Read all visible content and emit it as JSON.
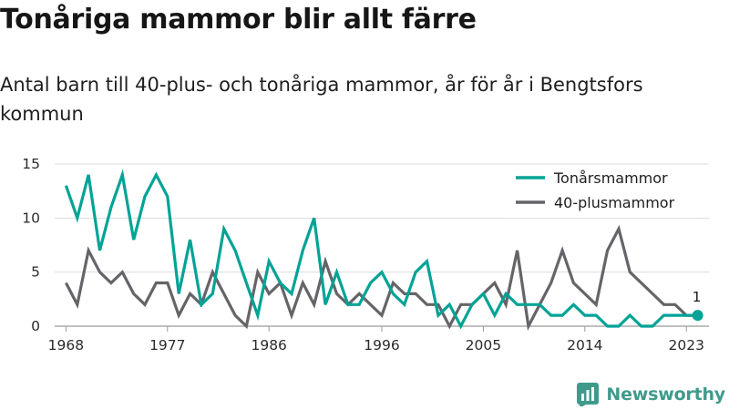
{
  "title": "Tonåriga mammor blir allt färre",
  "subtitle": "Antal barn till 40-plus- och tonåriga mammor, år för år i Bengtsfors kommun",
  "brand": {
    "name": "Newsworthy",
    "logo_icon": "newsworthy-logo-icon"
  },
  "chart_data": {
    "type": "line",
    "x": [
      1968,
      1969,
      1970,
      1971,
      1972,
      1973,
      1974,
      1975,
      1976,
      1977,
      1978,
      1979,
      1980,
      1981,
      1982,
      1983,
      1984,
      1985,
      1986,
      1987,
      1988,
      1989,
      1990,
      1991,
      1992,
      1993,
      1994,
      1995,
      1996,
      1997,
      1998,
      1999,
      2000,
      2001,
      2002,
      2003,
      2004,
      2005,
      2006,
      2007,
      2008,
      2009,
      2010,
      2011,
      2012,
      2013,
      2014,
      2015,
      2016,
      2017,
      2018,
      2019,
      2020,
      2021,
      2022,
      2023,
      2024
    ],
    "xticks": [
      "1968",
      "1977",
      "1986",
      "1996",
      "2005",
      "2014",
      "2023"
    ],
    "xtick_values": [
      1968,
      1977,
      1986,
      1996,
      2005,
      2014,
      2023
    ],
    "yticks": [
      "0",
      "5",
      "10",
      "15"
    ],
    "ytick_values": [
      0,
      5,
      10,
      15
    ],
    "ylim": [
      0,
      15
    ],
    "xlim": [
      1967,
      2025
    ],
    "grid": "horizontal",
    "legend_position": "top-right",
    "series": [
      {
        "name": "Tonårsmammor",
        "color": "#00a396",
        "values": [
          13,
          10,
          14,
          7,
          11,
          14,
          8,
          12,
          14,
          12,
          3,
          8,
          2,
          3,
          9,
          7,
          4,
          1,
          6,
          4,
          3,
          7,
          10,
          2,
          5,
          2,
          2,
          4,
          5,
          3,
          2,
          5,
          6,
          1,
          2,
          0,
          2,
          3,
          1,
          3,
          2,
          2,
          2,
          1,
          1,
          2,
          1,
          1,
          0,
          0,
          1,
          0,
          0,
          1,
          1,
          1,
          1
        ]
      },
      {
        "name": "40-plusmammor",
        "color": "#666468",
        "values": [
          4,
          2,
          7,
          5,
          4,
          5,
          3,
          2,
          4,
          4,
          1,
          3,
          2,
          5,
          3,
          1,
          0,
          5,
          3,
          4,
          1,
          4,
          2,
          6,
          3,
          2,
          3,
          2,
          1,
          4,
          3,
          3,
          2,
          2,
          0,
          2,
          2,
          3,
          4,
          2,
          7,
          0,
          2,
          4,
          7,
          4,
          3,
          2,
          7,
          9,
          5,
          4,
          3,
          2,
          2,
          1,
          1
        ]
      }
    ],
    "annotations": [
      {
        "text": "1",
        "x": 2024,
        "y": 1
      }
    ]
  }
}
